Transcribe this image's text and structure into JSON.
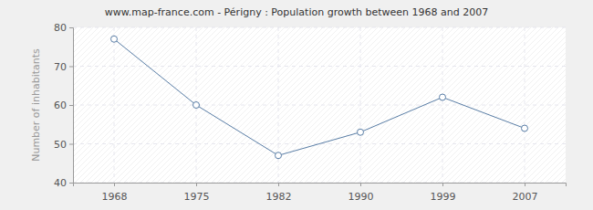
{
  "chart_data": {
    "type": "line",
    "title": "www.map-france.com - Périgny : Population growth between 1968 and 2007",
    "y_label": "Number of inhabitants",
    "categories": [
      "1968",
      "1975",
      "1982",
      "1990",
      "1999",
      "2007"
    ],
    "values": [
      77,
      60,
      47,
      53,
      62,
      54
    ],
    "color": "#5a7ea6",
    "marker": "circle",
    "ylim": [
      40,
      80
    ],
    "yticks": [
      40,
      50,
      60,
      70,
      80
    ],
    "grid": true
  }
}
